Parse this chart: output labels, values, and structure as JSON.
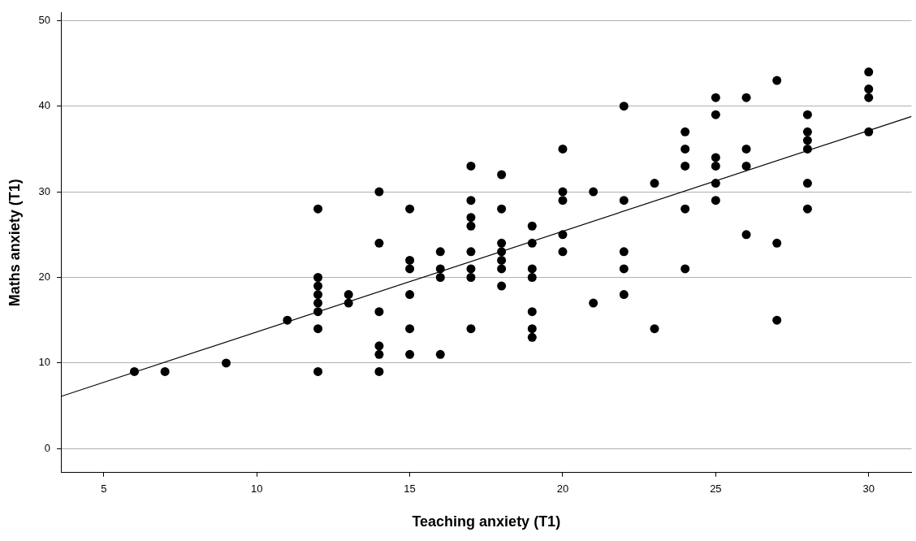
{
  "chart_data": {
    "type": "scatter",
    "xlabel": "Teaching anxiety (T1)",
    "ylabel": "Maths anxiety (T1)",
    "xlim": [
      3.6,
      31.4
    ],
    "ylim": [
      -2.8,
      50.9
    ],
    "xticks": [
      5,
      10,
      15,
      20,
      25,
      30
    ],
    "yticks": [
      0,
      10,
      20,
      30,
      40,
      50
    ],
    "grid": "y",
    "marker": "circle",
    "series": [
      {
        "color": "#000000",
        "x": [
          6,
          7,
          9,
          11,
          12,
          12,
          12,
          12,
          12,
          12,
          12,
          12,
          13,
          13,
          14,
          14,
          14,
          14,
          14,
          14,
          15,
          15,
          15,
          15,
          15,
          15,
          16,
          16,
          16,
          16,
          17,
          17,
          17,
          17,
          17,
          17,
          17,
          17,
          18,
          18,
          18,
          18,
          18,
          18,
          18,
          19,
          19,
          19,
          19,
          19,
          19,
          19,
          20,
          20,
          20,
          20,
          20,
          21,
          21,
          22,
          22,
          22,
          22,
          22,
          23,
          23,
          24,
          24,
          24,
          24,
          24,
          25,
          25,
          25,
          25,
          25,
          25,
          26,
          26,
          26,
          26,
          27,
          27,
          27,
          28,
          28,
          28,
          28,
          28,
          28,
          30,
          30,
          30,
          30
        ],
        "values": [
          9,
          9,
          10,
          15,
          28,
          20,
          19,
          18,
          17,
          16,
          14,
          9,
          18,
          17,
          30,
          24,
          16,
          12,
          11,
          9,
          28,
          22,
          21,
          18,
          14,
          11,
          23,
          21,
          20,
          11,
          33,
          29,
          27,
          26,
          23,
          21,
          20,
          14,
          32,
          28,
          24,
          23,
          22,
          21,
          19,
          26,
          24,
          21,
          20,
          16,
          14,
          13,
          35,
          30,
          29,
          25,
          23,
          30,
          17,
          40,
          29,
          23,
          21,
          18,
          31,
          14,
          37,
          35,
          33,
          28,
          21,
          41,
          39,
          34,
          33,
          31,
          29,
          41,
          35,
          33,
          25,
          43,
          24,
          15,
          39,
          37,
          36,
          35,
          31,
          28,
          44,
          42,
          41,
          37
        ]
      },
      {
        "type": "line",
        "color": "#000000",
        "x": [
          3.6,
          31.4
        ],
        "values": [
          6.1,
          38.8
        ],
        "marker": "none",
        "line_style": "solid"
      }
    ]
  }
}
